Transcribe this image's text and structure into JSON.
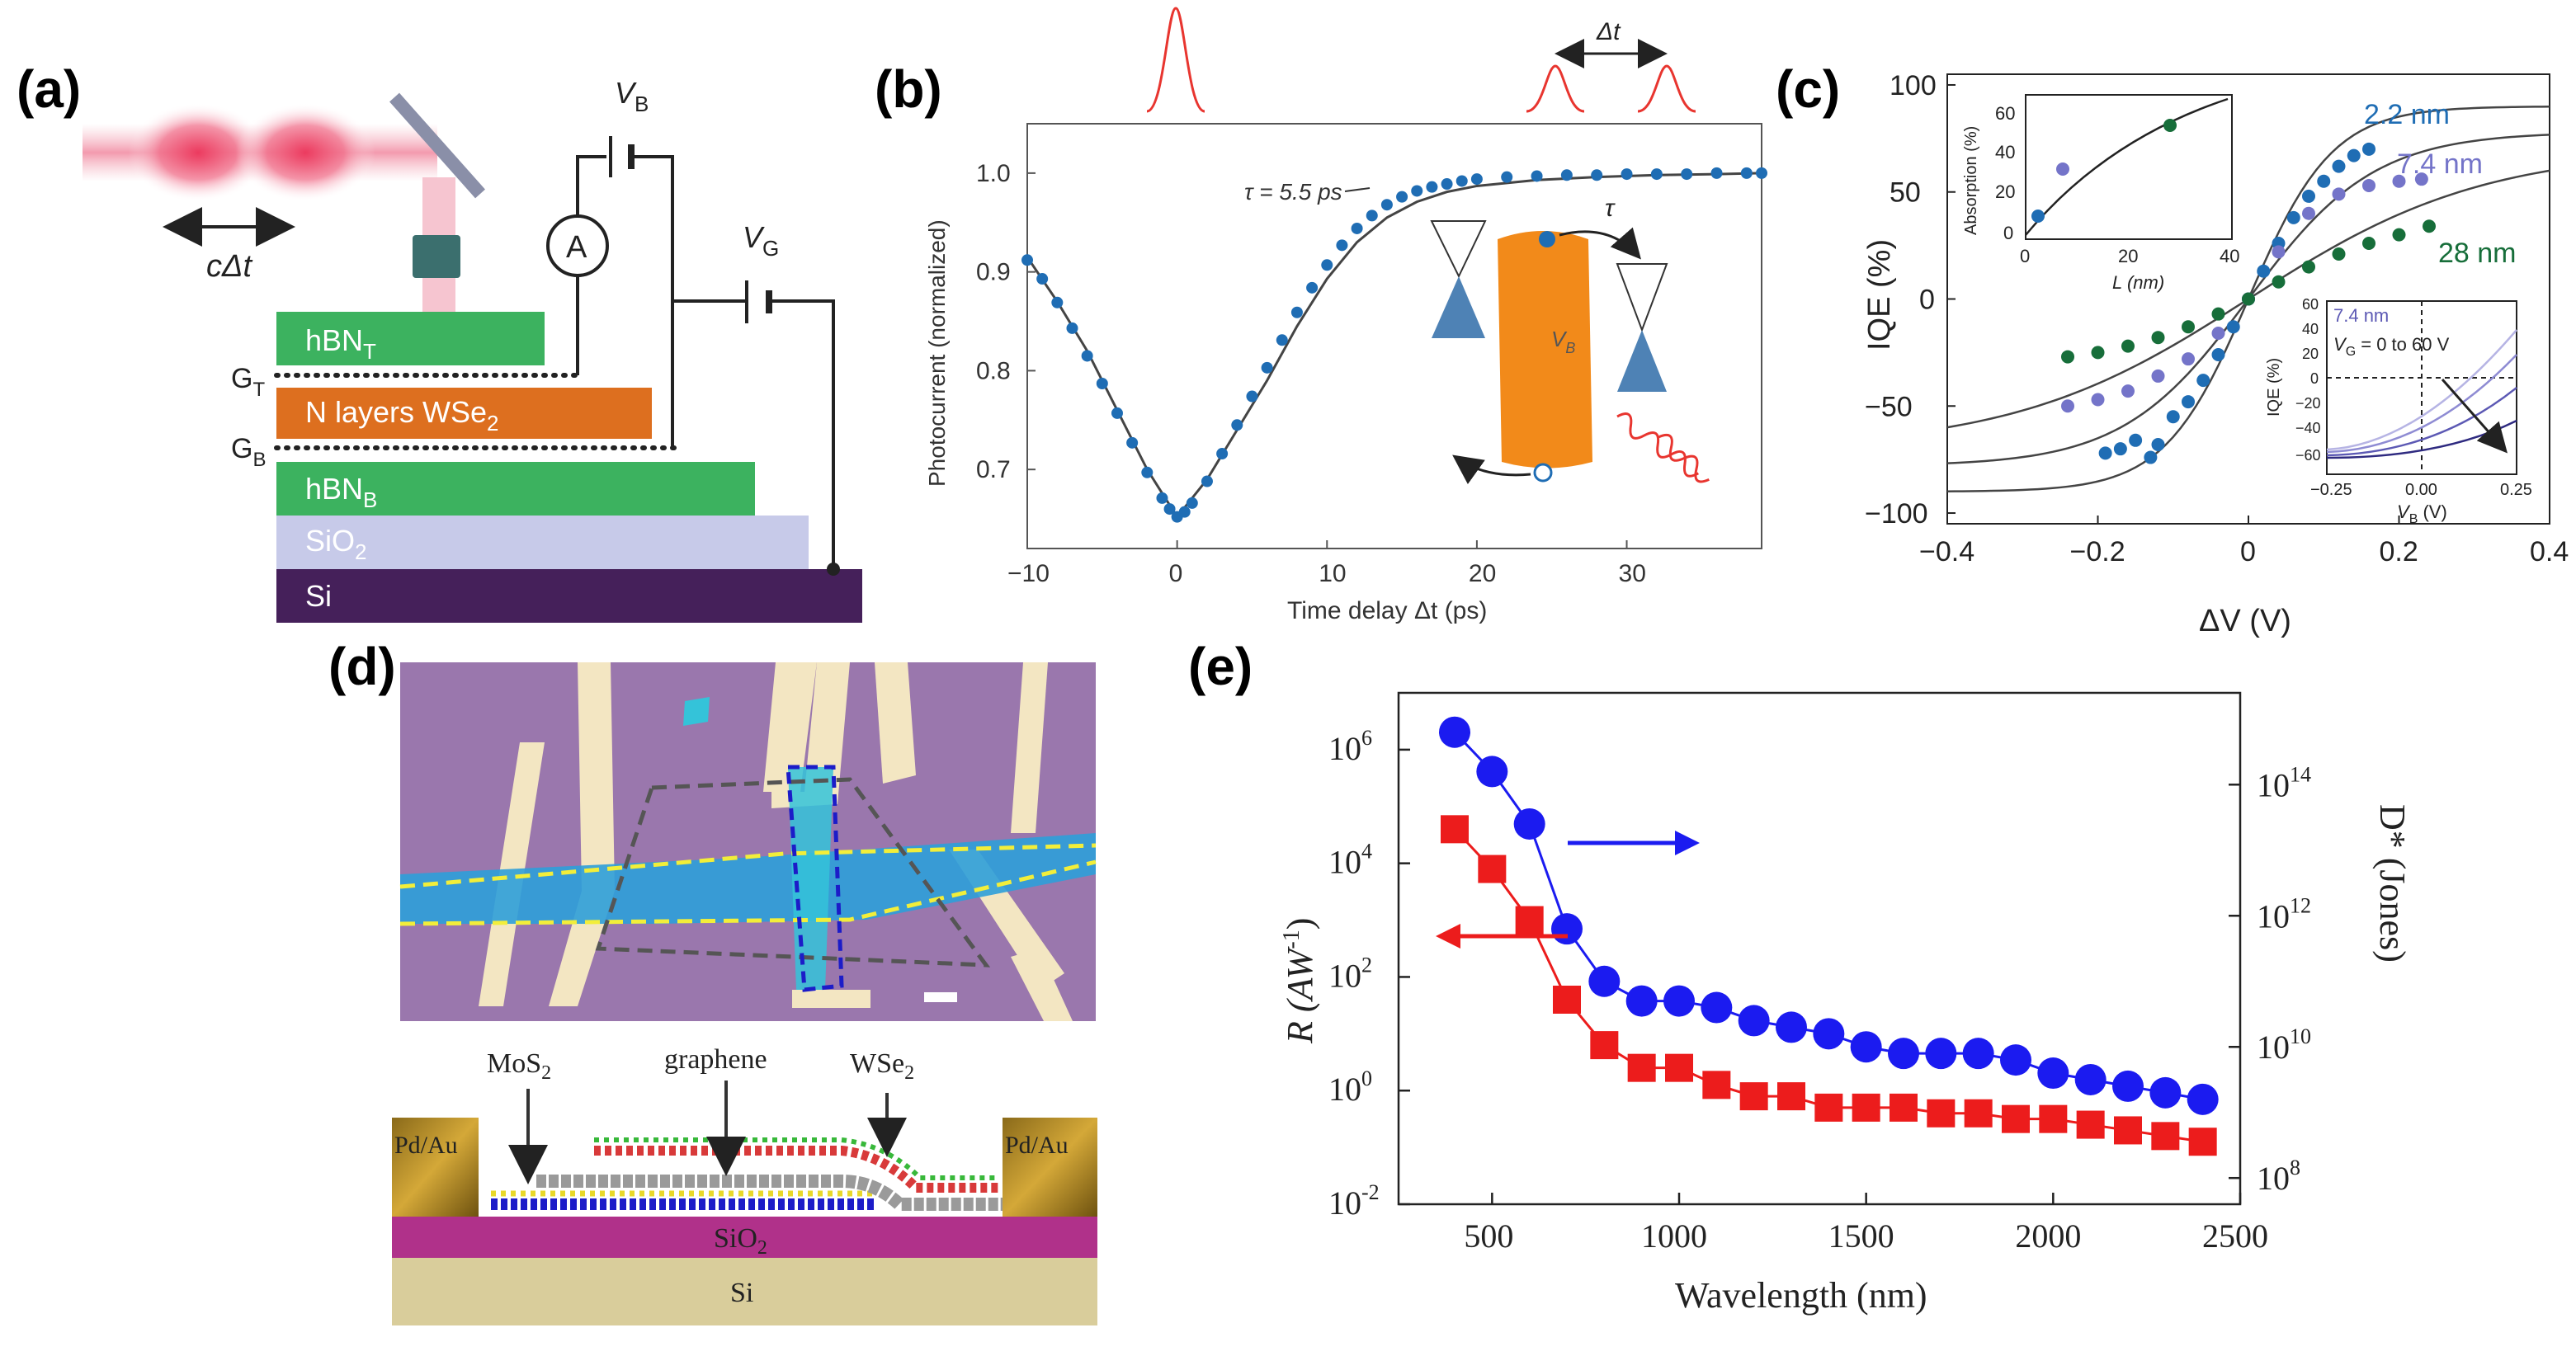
{
  "colors": {
    "pulse": "#ec3b5f",
    "hbn": "#3cb25f",
    "wse2": "#dd6f1f",
    "sio2": "#c7cae9",
    "si": "#45205a",
    "data_blue": "#1f6db4",
    "purple": "#7474c9",
    "dkgreen": "#176e3a",
    "red_pulse": "#e8352f",
    "r_red": "#ec1c1c",
    "d_blue": "#1b1bf0",
    "optical_bg": "#9a77ad",
    "flake_blue": "#2e9fd9"
  },
  "panel_a": {
    "label": "(a)",
    "c_dt": "cΔt",
    "vb": "V",
    "vb_sub": "B",
    "vg": "V",
    "vg_sub": "G",
    "ammeter": "A",
    "gt": "G",
    "gt_sub": "T",
    "gb": "G",
    "gb_sub": "B",
    "layers": [
      {
        "name": "hBN",
        "sub": "T"
      },
      {
        "name": "N layers WSe",
        "sub": "2"
      },
      {
        "name": "hBN",
        "sub": "B"
      },
      {
        "name": "SiO",
        "sub": "2"
      },
      {
        "name": "Si",
        "sub": ""
      }
    ]
  },
  "panel_b": {
    "label": "(b)",
    "dt_label": "Δt",
    "tau_label": "τ = 5.5 ps",
    "inset_tau": "τ",
    "inset_v": "V",
    "inset_v_sub": "B"
  },
  "panel_c": {
    "label": "(c)",
    "labels": [
      "2.2 nm",
      "7.4 nm",
      "28 nm"
    ],
    "inset1": {
      "ylabel": "Absorption (%)",
      "xlabel": "L (nm)",
      "xticks": [
        "0",
        "20",
        "40"
      ],
      "yticks": [
        "0",
        "20",
        "40",
        "60"
      ]
    },
    "inset2": {
      "ylabel": "IQE (%)",
      "xlabel": "V",
      "xlabel_sub": "B",
      "xlabel_unit": " (V)",
      "title": "7.4 nm",
      "vg_text": "V",
      "vg_sub": "G",
      "vg_rest": " = 0 to 60 V",
      "xticks": [
        "−0.25",
        "0.00",
        "0.25"
      ],
      "yticks": [
        "60",
        "40",
        "20",
        "0",
        "−20",
        "−40",
        "−60"
      ]
    }
  },
  "panel_d": {
    "label": "(d)",
    "mos2": "MoS",
    "mos2_sub": "2",
    "graphene": "graphene",
    "wse2": "WSe",
    "wse2_sub": "2",
    "pdau_left": "Pd/Au",
    "pdau_right": "Pd/Au",
    "sio2": "SiO",
    "sio2_sub": "2",
    "si": "Si"
  },
  "panel_e": {
    "label": "(e)",
    "ylabel_left": "R (AW",
    "ylabel_left_sup": "-1",
    "ylabel_right": "D* (Jones)"
  },
  "chart_data": [
    {
      "panel": "b",
      "type": "scatter",
      "title": "",
      "xlabel": "Time delay Δt (ps)",
      "ylabel": "Photocurrent (normalized)",
      "xlim": [
        -10,
        39
      ],
      "ylim": [
        0.62,
        1.05
      ],
      "xticks": [
        -10,
        0,
        10,
        20,
        30
      ],
      "yticks": [
        0.7,
        0.8,
        0.9,
        1.0
      ],
      "series": [
        {
          "name": "measured",
          "x": [
            -10,
            -9,
            -8,
            -7,
            -6,
            -5,
            -4,
            -3,
            -2,
            -1,
            -0.5,
            0,
            0.5,
            1,
            2,
            3,
            4,
            5,
            6,
            7,
            8,
            9,
            10,
            11,
            12,
            13,
            14,
            15,
            16,
            17,
            18,
            19,
            20,
            22,
            24,
            26,
            28,
            30,
            32,
            34,
            36,
            38,
            39
          ],
          "y": [
            0.912,
            0.893,
            0.869,
            0.843,
            0.815,
            0.787,
            0.757,
            0.727,
            0.697,
            0.671,
            0.66,
            0.652,
            0.657,
            0.666,
            0.688,
            0.716,
            0.745,
            0.774,
            0.803,
            0.831,
            0.859,
            0.884,
            0.907,
            0.927,
            0.944,
            0.957,
            0.968,
            0.976,
            0.982,
            0.986,
            0.989,
            0.992,
            0.994,
            0.996,
            0.997,
            0.998,
            0.998,
            0.999,
            0.999,
            0.999,
            1.0,
            1.0,
            1.0
          ]
        },
        {
          "name": "τ = 5.5 ps fit",
          "x": [
            -10,
            -8,
            -6,
            -4,
            -2,
            0,
            2,
            4,
            6,
            8,
            10,
            12,
            14,
            16,
            18,
            20,
            24,
            28,
            32,
            36,
            39
          ],
          "y": [
            0.915,
            0.87,
            0.82,
            0.76,
            0.7,
            0.652,
            0.69,
            0.74,
            0.79,
            0.845,
            0.893,
            0.93,
            0.955,
            0.971,
            0.981,
            0.987,
            0.993,
            0.996,
            0.998,
            0.999,
            1.0
          ]
        }
      ]
    },
    {
      "panel": "c",
      "type": "scatter",
      "xlabel": "ΔV (V)",
      "ylabel": "IQE (%)",
      "xlim": [
        -0.4,
        0.4
      ],
      "ylim": [
        -105,
        105
      ],
      "xticks": [
        -0.4,
        -0.2,
        0,
        0.2,
        0.4
      ],
      "yticks": [
        -100,
        -50,
        0,
        50,
        100
      ],
      "series": [
        {
          "name": "2.2 nm",
          "x": [
            -0.19,
            -0.17,
            -0.15,
            -0.13,
            -0.12,
            -0.1,
            -0.08,
            -0.06,
            -0.04,
            -0.02,
            0,
            0.02,
            0.04,
            0.06,
            0.08,
            0.1,
            0.12,
            0.14,
            0.16
          ],
          "y": [
            -72,
            -70,
            -66,
            -74,
            -68,
            -55,
            -48,
            -38,
            -26,
            -13,
            0,
            13,
            26,
            38,
            48,
            55,
            62,
            67,
            70
          ]
        },
        {
          "name": "7.4 nm",
          "x": [
            -0.24,
            -0.2,
            -0.16,
            -0.12,
            -0.08,
            -0.04,
            0,
            0.04,
            0.08,
            0.12,
            0.16,
            0.2,
            0.23
          ],
          "y": [
            -50,
            -47,
            -43,
            -36,
            -28,
            -16,
            0,
            22,
            40,
            49,
            53,
            55,
            56
          ]
        },
        {
          "name": "28 nm",
          "x": [
            -0.24,
            -0.2,
            -0.16,
            -0.12,
            -0.08,
            -0.04,
            0,
            0.04,
            0.08,
            0.12,
            0.16,
            0.2,
            0.24
          ],
          "y": [
            -27,
            -25,
            -22,
            -18,
            -13,
            -7,
            0,
            8,
            15,
            21,
            26,
            30,
            34
          ]
        }
      ]
    },
    {
      "panel": "e",
      "type": "line",
      "xlabel": "Wavelength (nm)",
      "ylabel": "R (AW-1)",
      "y2label": "D* (Jones)",
      "xlim": [
        250,
        2500
      ],
      "ylim_log10": [
        -2,
        7
      ],
      "y2lim_log10": [
        7.6,
        15.4
      ],
      "xticks": [
        500,
        1000,
        1500,
        2000,
        2500
      ],
      "series": [
        {
          "name": "R",
          "axis": "left",
          "x": [
            400,
            500,
            600,
            700,
            800,
            900,
            1000,
            1100,
            1200,
            1300,
            1400,
            1500,
            1600,
            1700,
            1800,
            1900,
            2000,
            2100,
            2200,
            2300,
            2400
          ],
          "y_log10": [
            4.6,
            3.9,
            3.0,
            1.6,
            0.8,
            0.4,
            0.4,
            0.1,
            -0.1,
            -0.1,
            -0.3,
            -0.3,
            -0.3,
            -0.4,
            -0.4,
            -0.5,
            -0.5,
            -0.6,
            -0.7,
            -0.8,
            -0.9
          ]
        },
        {
          "name": "D*",
          "axis": "right",
          "x": [
            400,
            500,
            600,
            700,
            800,
            900,
            1000,
            1100,
            1200,
            1300,
            1400,
            1500,
            1600,
            1700,
            1800,
            1900,
            2000,
            2100,
            2200,
            2300,
            2400
          ],
          "y_log10": [
            14.8,
            14.2,
            13.4,
            11.8,
            11.0,
            10.7,
            10.7,
            10.6,
            10.4,
            10.3,
            10.2,
            10.0,
            9.9,
            9.9,
            9.9,
            9.8,
            9.6,
            9.5,
            9.4,
            9.3,
            9.2
          ]
        }
      ]
    }
  ]
}
